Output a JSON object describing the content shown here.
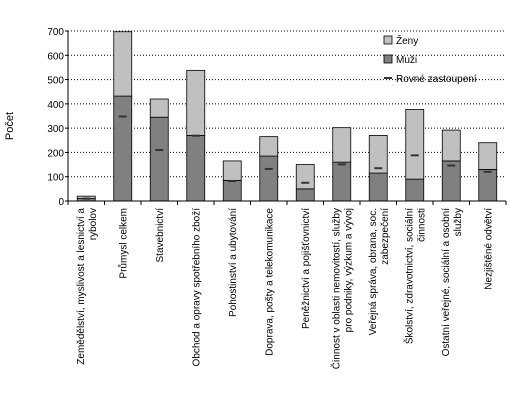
{
  "chart_data": {
    "type": "bar",
    "stacked": true,
    "ylabel": "Počet",
    "ylim": [
      0,
      700
    ],
    "yticks": [
      0,
      100,
      200,
      300,
      400,
      500,
      600,
      700
    ],
    "grid": "horizontal-dotted",
    "legend_position": "right",
    "categories": [
      [
        "Zemědělství, myslivost a lesnictví a",
        "rybolov"
      ],
      [
        "Průmysl celkem"
      ],
      [
        "Stavebnictví"
      ],
      [
        "Obchod a opravy spotřebního zboží"
      ],
      [
        "Pohostinství a ubytování"
      ],
      [
        "Doprava, pošty a telekomunikace"
      ],
      [
        "Peněžnictví a pojišťovnictví"
      ],
      [
        "Činnost v oblasti nemovitostí,  služby",
        "pro podniky, výzkum a vývoj"
      ],
      [
        "Veřejná správa, obrana, soc.",
        "zabezpečení"
      ],
      [
        "Školství, zdravotnictví, sociální",
        "činnosti"
      ],
      [
        "Ostatní veřejné, sociální a osobní",
        "služby"
      ],
      [
        "Nezjištěné odvětví"
      ]
    ],
    "series": [
      {
        "name": "Muži",
        "color": "#808080",
        "values": [
          10,
          432,
          345,
          270,
          85,
          185,
          50,
          160,
          115,
          90,
          165,
          130
        ]
      },
      {
        "name": "Ženy",
        "color": "#c0c0c0",
        "values": [
          10,
          265,
          75,
          268,
          80,
          80,
          100,
          142,
          155,
          287,
          127,
          110
        ]
      }
    ],
    "markers": {
      "name": "Rovné zastoupení",
      "color": "#333333",
      "values": [
        10,
        348,
        210,
        269,
        82,
        132,
        75,
        151,
        135,
        188,
        146,
        120
      ]
    }
  }
}
